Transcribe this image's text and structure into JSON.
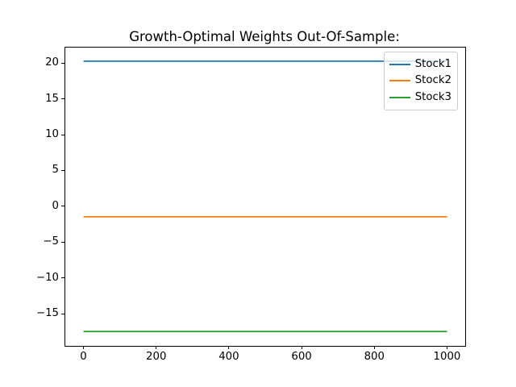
{
  "window": {
    "kind": "matplotlib-figure",
    "background": "#ffffff"
  },
  "chart_data": {
    "type": "line",
    "title": "Growth-Optimal Weights Out-Of-Sample:",
    "xlabel": "",
    "ylabel": "",
    "xlim": [
      -50,
      1050
    ],
    "ylim": [
      -19.4,
      22.2
    ],
    "x_ticks": [
      0,
      200,
      400,
      600,
      800,
      1000
    ],
    "y_ticks": [
      20,
      15,
      10,
      5,
      0,
      -5,
      -10,
      -15
    ],
    "grid": false,
    "legend_position": "upper right",
    "series": [
      {
        "name": "Stock1",
        "color": "#1f77b4",
        "y_constant": 20.3,
        "x_start": 0,
        "x_end": 1000
      },
      {
        "name": "Stock2",
        "color": "#ff7f0e",
        "y_constant": -1.4,
        "x_start": 0,
        "x_end": 1000
      },
      {
        "name": "Stock3",
        "color": "#2ca02c",
        "y_constant": -17.4,
        "x_start": 0,
        "x_end": 1000
      }
    ],
    "axis_color": "#000000",
    "legend_border_color": "#cccccc"
  }
}
